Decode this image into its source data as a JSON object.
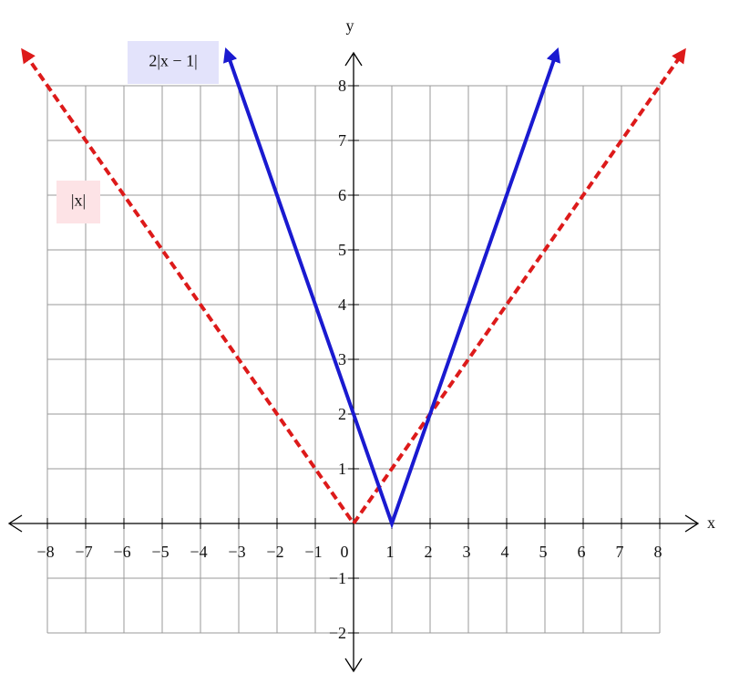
{
  "chart_data": {
    "type": "line",
    "x_label": "x",
    "y_label": "y",
    "xlim": [
      -9,
      9
    ],
    "ylim": [
      -2.7,
      8.6
    ],
    "xticks": [
      {
        "value": -8,
        "label": "−8"
      },
      {
        "value": -7,
        "label": "−7"
      },
      {
        "value": -6,
        "label": "−6"
      },
      {
        "value": -5,
        "label": "−5"
      },
      {
        "value": -4,
        "label": "−4"
      },
      {
        "value": -3,
        "label": "−3"
      },
      {
        "value": -2,
        "label": "−2"
      },
      {
        "value": -1,
        "label": "−1"
      },
      0,
      1,
      2,
      3,
      4,
      5,
      6,
      7,
      8
    ],
    "yticks": [
      {
        "value": -2,
        "label": "−2"
      },
      {
        "value": -1,
        "label": "−1"
      },
      1,
      2,
      3,
      4,
      5,
      6,
      7,
      8
    ],
    "grid": true,
    "series": [
      {
        "name": "|x|",
        "color": "#dd1a1a",
        "dashed": true,
        "x": [
          -8.6,
          0,
          8.6
        ],
        "values": [
          8.6,
          0,
          8.6
        ]
      },
      {
        "name": "2|x − 1|",
        "color": "#1a1ad0",
        "dashed": false,
        "x": [
          -3.3,
          1,
          5.3
        ],
        "values": [
          8.6,
          0,
          8.6
        ]
      }
    ]
  }
}
